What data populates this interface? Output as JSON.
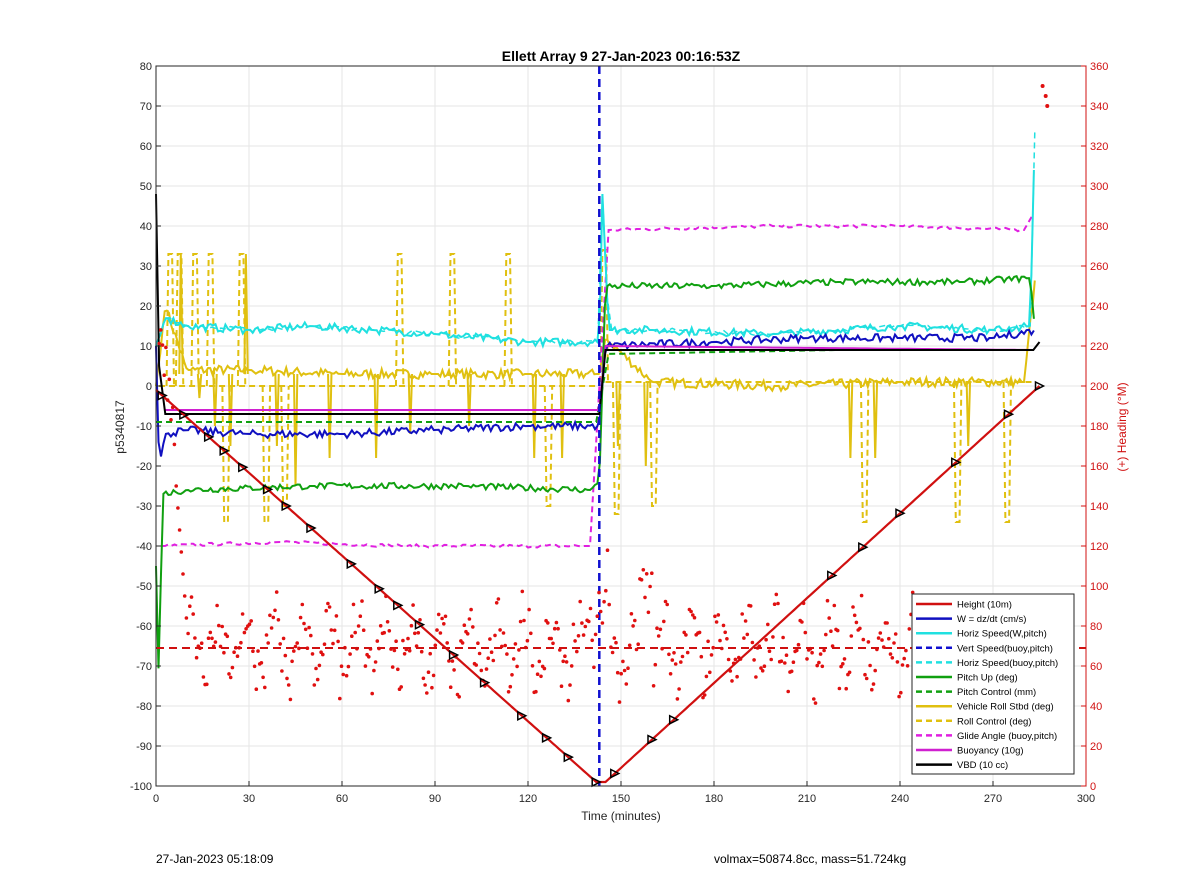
{
  "footer": {
    "left": "27-Jan-2023 05:18:09",
    "right": "volmax=50874.8cc, mass=51.724kg"
  },
  "chart_data": {
    "type": "line",
    "title": "Ellett Array 9 27-Jan-2023 00:16:53Z",
    "xlabel": "Time (minutes)",
    "ylabel": "p5340817",
    "y2label": "(+) Heading (°M)",
    "xlim": [
      0,
      300
    ],
    "ylim": [
      -100,
      80
    ],
    "y2lim": [
      0,
      360
    ],
    "xticks": [
      0,
      30,
      60,
      90,
      120,
      150,
      180,
      210,
      240,
      270,
      300
    ],
    "yticks": [
      -100,
      -90,
      -80,
      -70,
      -60,
      -50,
      -40,
      -30,
      -20,
      -10,
      0,
      10,
      20,
      30,
      40,
      50,
      60,
      70,
      80
    ],
    "y2ticks": [
      0,
      20,
      40,
      60,
      80,
      100,
      120,
      140,
      160,
      180,
      200,
      220,
      240,
      260,
      280,
      300,
      320,
      340,
      360
    ],
    "grid": true,
    "legend_position": "bottom-right",
    "colors": {
      "height": "#d01010",
      "w": "#1010c0",
      "horiz": "#20e0e0",
      "vert": "#1010d0",
      "pitch": "#10a010",
      "roll": "#e0c010",
      "glide": "#e020e0",
      "buoy": "#d020d0",
      "vbd": "#000000",
      "heading": "#e01010",
      "axis2": "#d01010"
    },
    "legend": [
      {
        "label": "Height (10m)",
        "color": "#d01010",
        "dash": false
      },
      {
        "label": "W = dz/dt (cm/s)",
        "color": "#1010c0",
        "dash": false
      },
      {
        "label": "Horiz Speed(W,pitch)",
        "color": "#20e0e0",
        "dash": false
      },
      {
        "label": "Vert Speed(buoy,pitch)",
        "color": "#1010d0",
        "dash": true
      },
      {
        "label": "Horiz Speed(buoy,pitch)",
        "color": "#20e0e0",
        "dash": true
      },
      {
        "label": "Pitch Up (deg)",
        "color": "#10a010",
        "dash": false
      },
      {
        "label": "Pitch Control (mm)",
        "color": "#10a010",
        "dash": true
      },
      {
        "label": "Vehicle Roll Stbd (deg)",
        "color": "#e0c010",
        "dash": false
      },
      {
        "label": "Roll Control (deg)",
        "color": "#e0c010",
        "dash": true
      },
      {
        "label": "Glide Angle (buoy,pitch)",
        "color": "#e020e0",
        "dash": true
      },
      {
        "label": "Buoyancy (10g)",
        "color": "#d020d0",
        "dash": false
      },
      {
        "label": "VBD (10 cc)",
        "color": "#000000",
        "dash": false
      }
    ],
    "series": {
      "height": {
        "x": [
          0,
          142,
          145,
          285
        ],
        "y": [
          -1,
          -99,
          -99,
          0
        ]
      },
      "height_markers_x": [
        2,
        9,
        17,
        22,
        28,
        36,
        42,
        50,
        63,
        72,
        78,
        85,
        96,
        106,
        118,
        126,
        133,
        142,
        148,
        160,
        167,
        218,
        228,
        240,
        258,
        275,
        285
      ],
      "heading_mean": 69,
      "vert_speed_dashed_x": 143,
      "w": {
        "x": [
          0,
          1,
          3,
          10,
          30,
          60,
          90,
          120,
          143,
          145,
          180,
          210,
          240,
          270,
          284
        ],
        "y": [
          10,
          -20,
          -12,
          -11,
          -12,
          -12,
          -11,
          -10,
          -10,
          10,
          11,
          12,
          12,
          12,
          14
        ]
      },
      "horiz": {
        "x": [
          0,
          3,
          10,
          30,
          50,
          70,
          90,
          120,
          143,
          144,
          146,
          160,
          200,
          240,
          270,
          282,
          284
        ],
        "y": [
          10,
          17,
          15,
          14,
          15,
          14,
          13,
          11,
          11,
          48,
          14,
          14,
          13,
          15,
          14,
          15,
          80
        ]
      },
      "pitch_up": {
        "x": [
          0,
          1,
          2,
          10,
          50,
          100,
          140,
          143,
          145,
          180,
          220,
          260,
          282,
          284
        ],
        "y": [
          -45,
          -77,
          -27,
          -26,
          -25,
          -25,
          -26,
          -24,
          25,
          25,
          26,
          26,
          27,
          10
        ]
      },
      "pitch_control": {
        "x": [
          0,
          143,
          145,
          220,
          282
        ],
        "y": [
          -9,
          -9,
          8,
          9,
          9
        ]
      },
      "roll": {
        "x": [
          0,
          3,
          10,
          30,
          60,
          90,
          120,
          143,
          145,
          160,
          200,
          240,
          280,
          284
        ],
        "y": [
          0,
          20,
          4,
          4,
          3,
          3,
          3,
          3,
          12,
          1,
          0,
          1,
          1,
          30
        ]
      },
      "glide": {
        "x": [
          2,
          40,
          80,
          140,
          146,
          200,
          240,
          280,
          283
        ],
        "y": [
          -40,
          -39,
          -40,
          -40,
          39,
          40,
          40,
          39,
          43
        ]
      },
      "buoyancy": {
        "x": [
          3,
          143,
          145,
          283
        ],
        "y": [
          -6,
          -6,
          10,
          9
        ]
      },
      "vbd": {
        "x": [
          0,
          1,
          3,
          143,
          145,
          283,
          285
        ],
        "y": [
          48,
          5,
          -7,
          -7,
          9,
          9,
          11
        ]
      }
    }
  }
}
